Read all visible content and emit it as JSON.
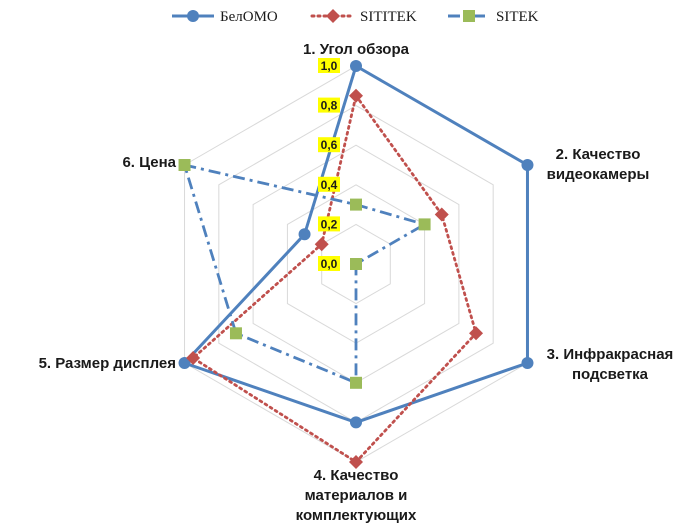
{
  "chart_data": {
    "type": "radar",
    "title": "",
    "categories": [
      "1. Угол обзора",
      "2. Качество видеокамеры",
      "3. Инфракрасная подсветка",
      "4. Качество материалов и комплектующих",
      "5. Размер дисплея",
      "6. Цена"
    ],
    "category_lines": [
      [
        "1. Угол обзора"
      ],
      [
        "2. Качество",
        "видеокамеры"
      ],
      [
        "3. Инфракрасная",
        "подсветка"
      ],
      [
        "4. Качество",
        "материалов и",
        "комплектующих"
      ],
      [
        "5. Размер дисплея"
      ],
      [
        "6. Цена"
      ]
    ],
    "ticks": [
      "0,0",
      "0,2",
      "0,4",
      "0,6",
      "0,8",
      "1,0"
    ],
    "rlim": [
      0,
      1
    ],
    "grid": true,
    "legend_position": "top",
    "series": [
      {
        "name": "БелОМО",
        "values": [
          1.0,
          1.0,
          1.0,
          0.8,
          1.0,
          0.3
        ],
        "color": "#4F81BD",
        "line": "solid",
        "marker": "circle"
      },
      {
        "name": "SITITEK",
        "values": [
          0.85,
          0.5,
          0.7,
          1.0,
          0.95,
          0.2
        ],
        "color": "#C0504D",
        "line": "dotted",
        "marker": "diamond"
      },
      {
        "name": "SITEK",
        "values": [
          0.3,
          0.4,
          0.0,
          0.6,
          0.7,
          1.0
        ],
        "color": "#4F81BD",
        "line": "dashdot",
        "marker": "square",
        "marker_color": "#9BBB59"
      }
    ],
    "tick_highlight_color": "#FFFF00",
    "grid_color": "#D9D9D9"
  }
}
